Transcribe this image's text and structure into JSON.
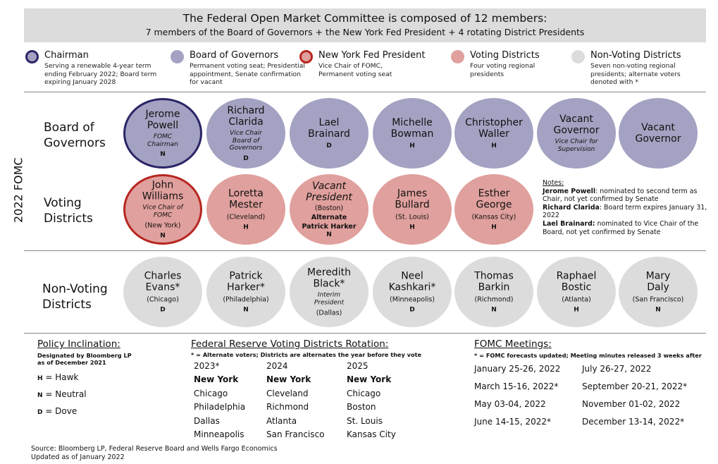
{
  "header": {
    "title": "The Federal Open Market Committee is composed of 12 members:",
    "subtitle": "7 members of the Board of Governors + the New York Fed President + 4 rotating District Presidents"
  },
  "legend": [
    {
      "title": "Chairman",
      "desc": "Serving a renewable 4-year term ending February 2022; Board term expiring January 2028",
      "color": "#a3a2c2",
      "border": "#2a2566"
    },
    {
      "title": "Board of Governors",
      "desc": "Permanent voting seat; Presidential appointment, Senate confirmation for vacant",
      "color": "#a3a2c2",
      "border": ""
    },
    {
      "title": "New York Fed President",
      "desc": "Vice Chair of FOMC, Permanent voting seat",
      "color": "#e0a09d",
      "border": "#b82620"
    },
    {
      "title": "Voting Districts",
      "desc": "Four voting regional presidents",
      "color": "#e0a09d",
      "border": ""
    },
    {
      "title": "Non-Voting Districts",
      "desc": "Seven non-voting regional presidents; alternate voters denoted with *",
      "color": "#dcdcdc",
      "border": ""
    }
  ],
  "side_label": "2022 FOMC",
  "rows": {
    "governors": {
      "label_line1": "Board of",
      "label_line2": "Governors",
      "members": [
        {
          "name1": "Jerome",
          "name2": "Powell",
          "role": "FOMC Chairman",
          "inc": "N"
        },
        {
          "name1": "Richard",
          "name2": "Clarida",
          "role": "Vice Chair Board of Governors",
          "inc": "D"
        },
        {
          "name1": "Lael",
          "name2": "Brainard",
          "role": "",
          "inc": "D"
        },
        {
          "name1": "Michelle",
          "name2": "Bowman",
          "role": "",
          "inc": "H"
        },
        {
          "name1": "Christopher",
          "name2": "Waller",
          "role": "",
          "inc": "H"
        },
        {
          "name1": "Vacant",
          "name2": "Governor",
          "role": "Vice Chair for Supervision",
          "inc": ""
        },
        {
          "name1": "Vacant",
          "name2": "Governor",
          "role": "",
          "inc": ""
        }
      ]
    },
    "voting": {
      "label_line1": "Voting",
      "label_line2": "Districts",
      "members": [
        {
          "name1": "John",
          "name2": "Williams",
          "role": "Vice Chair of FOMC",
          "loc": "(New York)",
          "inc": "N"
        },
        {
          "name1": "Loretta",
          "name2": "Mester",
          "role": "",
          "loc": "(Cleveland)",
          "inc": "H"
        },
        {
          "name1": "Vacant",
          "name2": "President",
          "role": "",
          "loc": "(Boston)",
          "alt1": "Alternate",
          "alt2": "Patrick Harker",
          "inc": "N"
        },
        {
          "name1": "James",
          "name2": "Bullard",
          "role": "",
          "loc": "(St. Louis)",
          "inc": "H"
        },
        {
          "name1": "Esther",
          "name2": "George",
          "role": "",
          "loc": "(Kansas City)",
          "inc": "H"
        }
      ]
    },
    "nonvoting": {
      "label_line1": "Non-Voting",
      "label_line2": "Districts",
      "members": [
        {
          "name1": "Charles",
          "name2": "Evans*",
          "role": "",
          "loc": "(Chicago)",
          "inc": "D"
        },
        {
          "name1": "Patrick",
          "name2": "Harker*",
          "role": "",
          "loc": "(Philadelphia)",
          "inc": "N"
        },
        {
          "name1": "Meredith",
          "name2": "Black*",
          "role": "Interim President",
          "loc": "(Dallas)",
          "inc": ""
        },
        {
          "name1": "Neel",
          "name2": "Kashkari*",
          "role": "",
          "loc": "(Minneapolis)",
          "inc": "D"
        },
        {
          "name1": "Thomas",
          "name2": "Barkin",
          "role": "",
          "loc": "(Richmond)",
          "inc": "N"
        },
        {
          "name1": "Raphael",
          "name2": "Bostic",
          "role": "",
          "loc": "(Atlanta)",
          "inc": "H"
        },
        {
          "name1": "Mary",
          "name2": "Daly",
          "role": "",
          "loc": "(San Francisco)",
          "inc": "N"
        }
      ]
    }
  },
  "notes": {
    "heading": "Notes:",
    "items": [
      {
        "bold": "Jerome Powell",
        "text": ": nominated to second term as Chair, not yet confirmed by Senate"
      },
      {
        "bold": "Richard Clarida",
        "text": ": Board term expires January 31, 2022"
      },
      {
        "bold": "Lael Brainard:",
        "text": " nominated to Vice Chair of the Board, not yet confirmed by Senate"
      }
    ]
  },
  "policy": {
    "title": "Policy Inclination:",
    "sub": "Designated by Bloomberg LP as of December 2021",
    "items": [
      {
        "key": "H",
        "label": " = Hawk"
      },
      {
        "key": "N",
        "label": " = Neutral"
      },
      {
        "key": "D",
        "label": " = Dove"
      }
    ]
  },
  "rotation": {
    "title": "Federal Reserve Voting Districts Rotation:",
    "sub": "* = Alternate voters; Districts are alternates the year before they vote",
    "columns": [
      {
        "year": "2023*",
        "items": [
          "New York",
          "Chicago",
          "Philadelphia",
          "Dallas",
          "Minneapolis"
        ]
      },
      {
        "year": "2024",
        "items": [
          "New York",
          "Cleveland",
          "Richmond",
          "Atlanta",
          "San Francisco"
        ]
      },
      {
        "year": "2025",
        "items": [
          "New York",
          "Chicago",
          "Boston",
          "St. Louis",
          "Kansas City"
        ]
      }
    ]
  },
  "meetings": {
    "title": "FOMC Meetings",
    "title_suffix": ":",
    "sub": "* = FOMC forecasts updated; Meeting minutes released 3 weeks after",
    "left": [
      "January 25-26, 2022",
      "March 15-16, 2022*",
      "May 03-04, 2022",
      "June 14-15, 2022*"
    ],
    "right": [
      "July 26-27, 2022",
      "September 20-21, 2022*",
      "November 01-02, 2022",
      "December 13-14, 2022*"
    ]
  },
  "footer": {
    "source": "Source: Bloomberg LP, Federal Reserve Board and Wells Fargo Economics",
    "updated": "Updated as of January 2022"
  }
}
